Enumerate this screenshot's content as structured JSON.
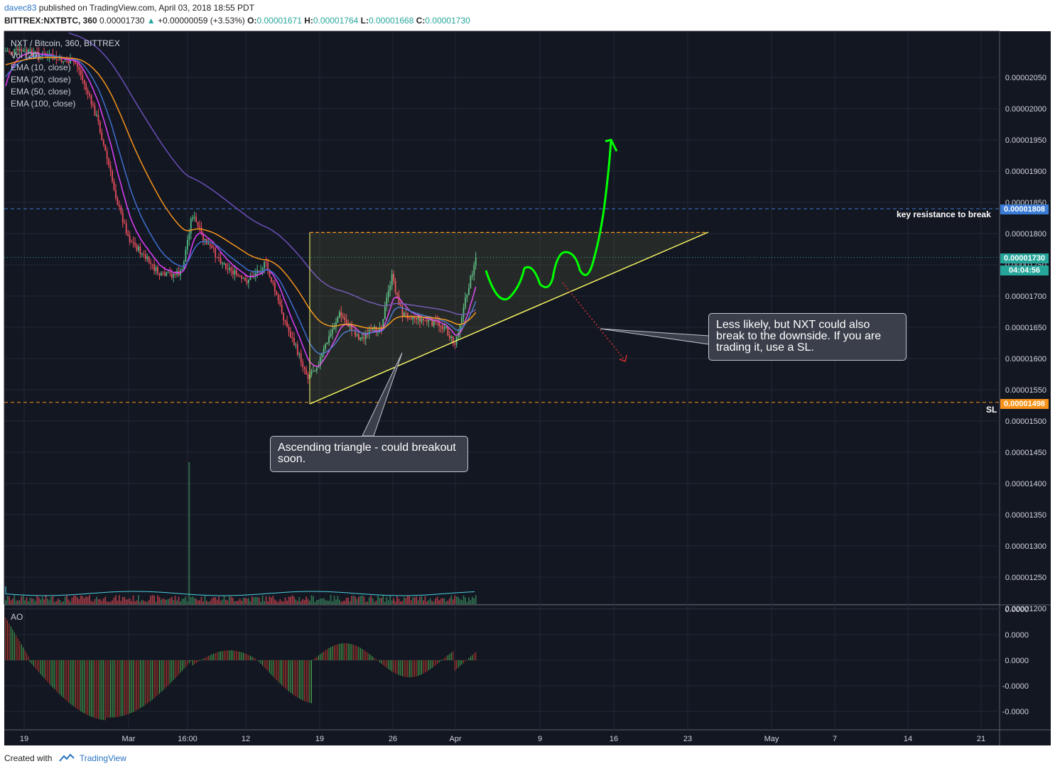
{
  "header": {
    "user": "davec83",
    "published": "published on TradingView.com, April 03, 2018 18:55 PDT",
    "symbol": "BITTREX:NXTBTC, 360",
    "last": "0.00001730",
    "change_arrow": "▲",
    "change": "+0.00000059 (+3.53%)",
    "o_label": "O:",
    "o_value": "0.00001671",
    "h_label": "H:",
    "h_value": "0.00001764",
    "l_label": "L:",
    "l_value": "0.00001668",
    "c_label": "C:",
    "c_value": "0.00001730"
  },
  "legend": {
    "title": "NXT / Bitcoin, 360, BITTREX",
    "items": [
      "Vol (20)",
      "EMA (10, close)",
      "EMA (20, close)",
      "EMA (50, close)",
      "EMA (100, close)"
    ],
    "ao_label": "AO"
  },
  "annotations": {
    "triangle_callout": "Ascending triangle - could breakout soon.",
    "downside_callout": "Less likely, but NXT could also break to the downside. If you are trading it, use a SL.",
    "resistance_label": "key resistance to break",
    "sl_label": "SL"
  },
  "price_tags": {
    "resistance": "0.00001808",
    "current": "0.00001730",
    "countdown": "04:04:56",
    "stop_loss": "0.00001498"
  },
  "footer": {
    "created_with": "Created with",
    "brand": "TradingView"
  },
  "colors": {
    "background": "#131722",
    "up_candle": "#53b987",
    "down_candle": "#eb4d5c",
    "ema10": "#e040fb",
    "ema20": "#3f6fd0",
    "ema50": "#f7931a",
    "ema100": "#6a4fb8",
    "triangle": "#ffff66",
    "forecast_up": "#00ff00",
    "forecast_down": "#d32f2f",
    "resistance_tag": "#3a7bd5",
    "current_tag": "#26a69a",
    "sl_tag": "#f7931a"
  },
  "chart_data": {
    "type": "candlestick",
    "title": "NXT / Bitcoin, 360, BITTREX",
    "y_ticks": [
      "0.00002050",
      "0.00002000",
      "0.00001950",
      "0.00001900",
      "0.00001850",
      "0.00001800",
      "0.00001750",
      "0.00001700",
      "0.00001650",
      "0.00001600",
      "0.00001550",
      "0.00001500",
      "0.00001450",
      "0.00001400",
      "0.00001350",
      "0.00001300",
      "0.00001250",
      "0.00001200"
    ],
    "x_ticks": [
      "19",
      "Mar",
      "16:00",
      "12",
      "19",
      "26",
      "Apr",
      "9",
      "16",
      "23",
      "May",
      "7",
      "14",
      "21"
    ],
    "ylim": [
      1.18e-05,
      2.09e-05
    ],
    "grid": true,
    "levels": {
      "key_resistance": 1.808e-05,
      "current": 1.73e-05,
      "stop_loss": 1.498e-05,
      "triangle_top": 1.77e-05
    },
    "close_path": [
      {
        "x": "Feb 19",
        "y": 2.06e-05
      },
      {
        "x": "Feb 24",
        "y": 2.04e-05
      },
      {
        "x": "Feb 26",
        "y": 1.95e-05
      },
      {
        "x": "Feb 28",
        "y": 1.81e-05
      },
      {
        "x": "Mar 1",
        "y": 1.76e-05
      },
      {
        "x": "Mar 4",
        "y": 1.7e-05
      },
      {
        "x": "Mar 6",
        "y": 1.705e-05
      },
      {
        "x": "Mar 7",
        "y": 1.8e-05
      },
      {
        "x": "Mar 8",
        "y": 1.76e-05
      },
      {
        "x": "Mar 10",
        "y": 1.72e-05
      },
      {
        "x": "Mar 12",
        "y": 1.69e-05
      },
      {
        "x": "Mar 14",
        "y": 1.72e-05
      },
      {
        "x": "Mar 16",
        "y": 1.62e-05
      },
      {
        "x": "Mar 18",
        "y": 1.54e-05
      },
      {
        "x": "Mar 19",
        "y": 1.56e-05
      },
      {
        "x": "Mar 21",
        "y": 1.64e-05
      },
      {
        "x": "Mar 23",
        "y": 1.6e-05
      },
      {
        "x": "Mar 25",
        "y": 1.62e-05
      },
      {
        "x": "Mar 26",
        "y": 1.7e-05
      },
      {
        "x": "Mar 27",
        "y": 1.64e-05
      },
      {
        "x": "Mar 29",
        "y": 1.63e-05
      },
      {
        "x": "Mar 31",
        "y": 1.62e-05
      },
      {
        "x": "Apr 1",
        "y": 1.59e-05
      },
      {
        "x": "Apr 2",
        "y": 1.66e-05
      },
      {
        "x": "Apr 3",
        "y": 1.73e-05
      }
    ],
    "series": [
      {
        "name": "EMA (10, close)"
      },
      {
        "name": "EMA (20, close)"
      },
      {
        "name": "EMA (50, close)"
      },
      {
        "name": "EMA (100, close)"
      },
      {
        "name": "Vol (20)"
      },
      {
        "name": "AO"
      }
    ],
    "volume_spike": {
      "x": "Mar 6 16:00",
      "note": "largest volume bar"
    }
  }
}
